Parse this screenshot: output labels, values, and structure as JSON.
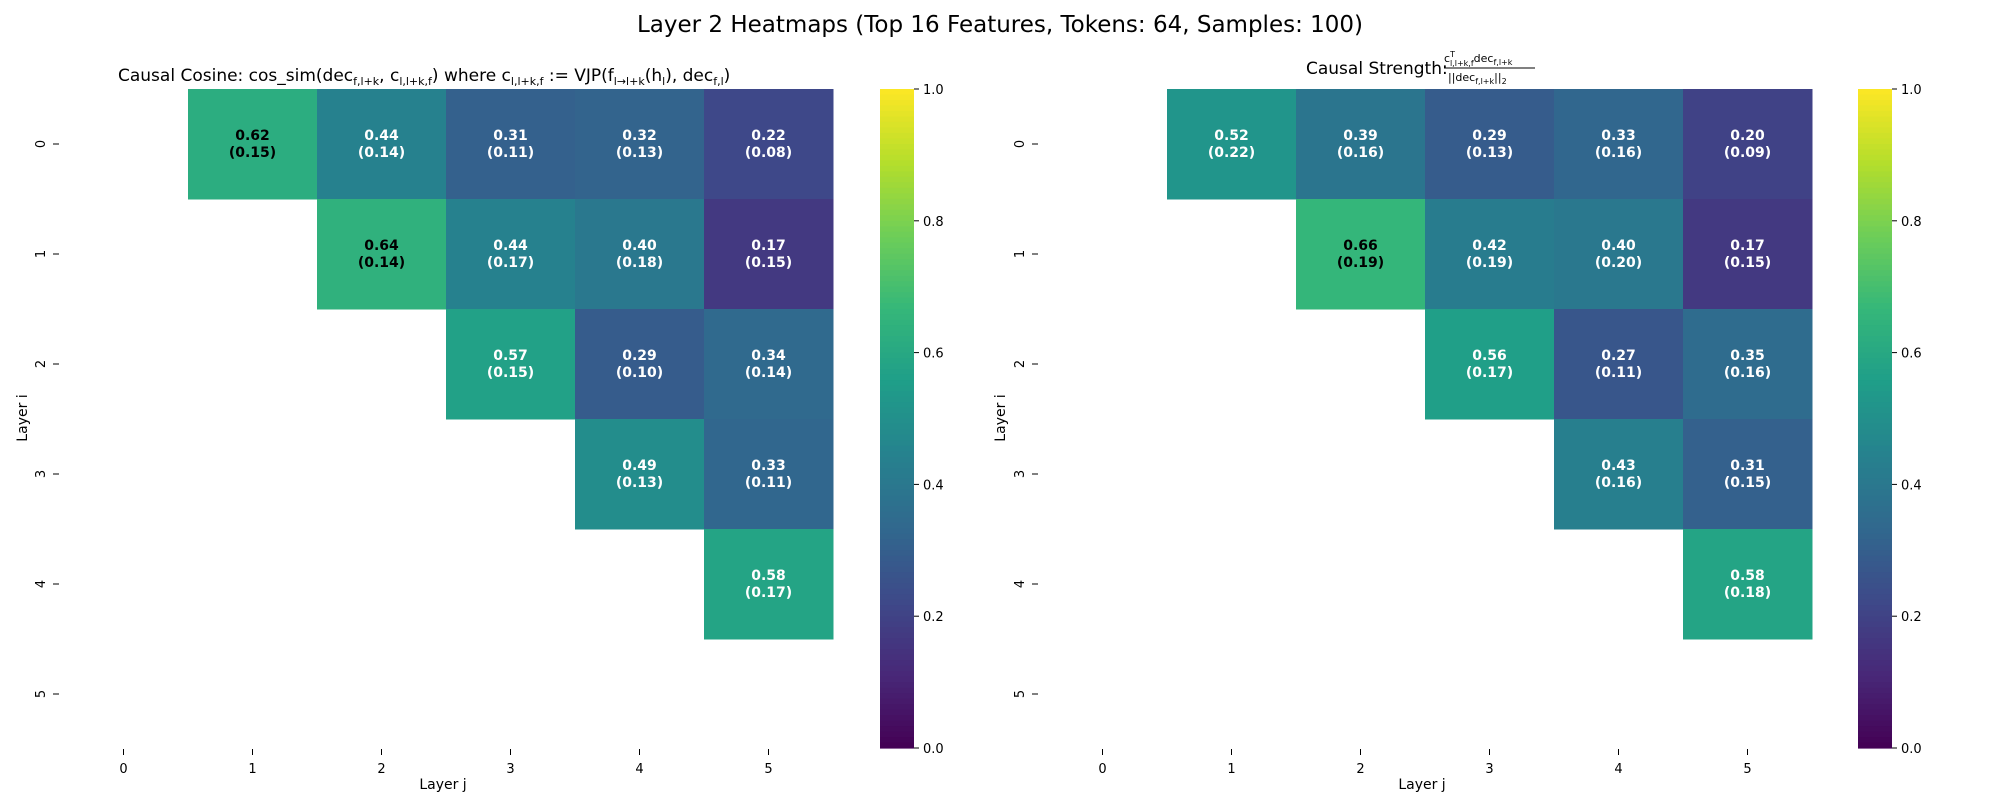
{
  "figure": {
    "title": "Layer 2 Heatmaps (Top 16 Features, Tokens: 64, Samples: 100)"
  },
  "colormap": {
    "name": "viridis",
    "stops": [
      "#440154",
      "#482878",
      "#3e4989",
      "#31688e",
      "#26828e",
      "#1f9e89",
      "#35b779",
      "#6ece58",
      "#b5de2b",
      "#fde725"
    ]
  },
  "chart_data": [
    {
      "type": "heatmap",
      "title": "Causal Cosine: cos_sim(dec",
      "title_parts": {
        "prefix": "Causal Cosine: cos_sim(dec",
        "s1": "f,l+k",
        "p2": ", c",
        "s2": "l,l+k,f",
        "p3": ") where c",
        "s3": "l,l+k,f",
        "p4": " := VJP(f",
        "s4": "l→l+k",
        "p5": "(h",
        "s5": "l",
        "p6": "), dec",
        "s6": "f,l",
        "p7": ")"
      },
      "xlabel": "Layer j",
      "ylabel": "Layer i",
      "x_ticks": [
        "0",
        "1",
        "2",
        "3",
        "4",
        "5"
      ],
      "y_ticks": [
        "0",
        "1",
        "2",
        "3",
        "4",
        "5"
      ],
      "vmin": 0,
      "vmax": 1,
      "colorbar_ticks": [
        "0.0",
        "0.2",
        "0.4",
        "0.6",
        "0.8",
        "1.0"
      ],
      "cells": [
        {
          "row": 0,
          "col": 1,
          "mean": 0.62,
          "std": 0.15,
          "label": "0.62",
          "sub": "(0.15)"
        },
        {
          "row": 0,
          "col": 2,
          "mean": 0.44,
          "std": 0.14,
          "label": "0.44",
          "sub": "(0.14)"
        },
        {
          "row": 0,
          "col": 3,
          "mean": 0.31,
          "std": 0.11,
          "label": "0.31",
          "sub": "(0.11)"
        },
        {
          "row": 0,
          "col": 4,
          "mean": 0.32,
          "std": 0.13,
          "label": "0.32",
          "sub": "(0.13)"
        },
        {
          "row": 0,
          "col": 5,
          "mean": 0.22,
          "std": 0.08,
          "label": "0.22",
          "sub": "(0.08)"
        },
        {
          "row": 1,
          "col": 2,
          "mean": 0.64,
          "std": 0.14,
          "label": "0.64",
          "sub": "(0.14)"
        },
        {
          "row": 1,
          "col": 3,
          "mean": 0.44,
          "std": 0.17,
          "label": "0.44",
          "sub": "(0.17)"
        },
        {
          "row": 1,
          "col": 4,
          "mean": 0.4,
          "std": 0.18,
          "label": "0.40",
          "sub": "(0.18)"
        },
        {
          "row": 1,
          "col": 5,
          "mean": 0.17,
          "std": 0.15,
          "label": "0.17",
          "sub": "(0.15)"
        },
        {
          "row": 2,
          "col": 3,
          "mean": 0.57,
          "std": 0.15,
          "label": "0.57",
          "sub": "(0.15)"
        },
        {
          "row": 2,
          "col": 4,
          "mean": 0.29,
          "std": 0.1,
          "label": "0.29",
          "sub": "(0.10)"
        },
        {
          "row": 2,
          "col": 5,
          "mean": 0.34,
          "std": 0.14,
          "label": "0.34",
          "sub": "(0.14)"
        },
        {
          "row": 3,
          "col": 4,
          "mean": 0.49,
          "std": 0.13,
          "label": "0.49",
          "sub": "(0.13)"
        },
        {
          "row": 3,
          "col": 5,
          "mean": 0.33,
          "std": 0.11,
          "label": "0.33",
          "sub": "(0.11)"
        },
        {
          "row": 4,
          "col": 5,
          "mean": 0.58,
          "std": 0.17,
          "label": "0.58",
          "sub": "(0.17)"
        }
      ]
    },
    {
      "type": "heatmap",
      "title": "Causal Strength:",
      "title_parts": {
        "prefix": "Causal Strength:",
        "numerator": "c",
        "num_sup": "T",
        "num_sub": "l,l+k,f",
        "num_rest": "dec",
        "num_rest_sub": "f,l+k",
        "denominator": "||dec",
        "den_sub": "f,l+k",
        "den_rest": "||",
        "den_rest_sub": "2"
      },
      "xlabel": "Layer j",
      "ylabel": "Layer i",
      "x_ticks": [
        "0",
        "1",
        "2",
        "3",
        "4",
        "5"
      ],
      "y_ticks": [
        "0",
        "1",
        "2",
        "3",
        "4",
        "5"
      ],
      "vmin": 0,
      "vmax": 1,
      "colorbar_ticks": [
        "0.0",
        "0.2",
        "0.4",
        "0.6",
        "0.8",
        "1.0"
      ],
      "cells": [
        {
          "row": 0,
          "col": 1,
          "mean": 0.52,
          "std": 0.22,
          "label": "0.52",
          "sub": "(0.22)"
        },
        {
          "row": 0,
          "col": 2,
          "mean": 0.39,
          "std": 0.16,
          "label": "0.39",
          "sub": "(0.16)"
        },
        {
          "row": 0,
          "col": 3,
          "mean": 0.29,
          "std": 0.13,
          "label": "0.29",
          "sub": "(0.13)"
        },
        {
          "row": 0,
          "col": 4,
          "mean": 0.33,
          "std": 0.16,
          "label": "0.33",
          "sub": "(0.16)"
        },
        {
          "row": 0,
          "col": 5,
          "mean": 0.2,
          "std": 0.09,
          "label": "0.20",
          "sub": "(0.09)"
        },
        {
          "row": 1,
          "col": 2,
          "mean": 0.66,
          "std": 0.19,
          "label": "0.66",
          "sub": "(0.19)"
        },
        {
          "row": 1,
          "col": 3,
          "mean": 0.42,
          "std": 0.19,
          "label": "0.42",
          "sub": "(0.19)"
        },
        {
          "row": 1,
          "col": 4,
          "mean": 0.4,
          "std": 0.2,
          "label": "0.40",
          "sub": "(0.20)"
        },
        {
          "row": 1,
          "col": 5,
          "mean": 0.17,
          "std": 0.15,
          "label": "0.17",
          "sub": "(0.15)"
        },
        {
          "row": 2,
          "col": 3,
          "mean": 0.56,
          "std": 0.17,
          "label": "0.56",
          "sub": "(0.17)"
        },
        {
          "row": 2,
          "col": 4,
          "mean": 0.27,
          "std": 0.11,
          "label": "0.27",
          "sub": "(0.11)"
        },
        {
          "row": 2,
          "col": 5,
          "mean": 0.35,
          "std": 0.16,
          "label": "0.35",
          "sub": "(0.16)"
        },
        {
          "row": 3,
          "col": 4,
          "mean": 0.43,
          "std": 0.16,
          "label": "0.43",
          "sub": "(0.16)"
        },
        {
          "row": 3,
          "col": 5,
          "mean": 0.31,
          "std": 0.15,
          "label": "0.31",
          "sub": "(0.15)"
        },
        {
          "row": 4,
          "col": 5,
          "mean": 0.58,
          "std": 0.18,
          "label": "0.58",
          "sub": "(0.18)"
        }
      ]
    }
  ]
}
